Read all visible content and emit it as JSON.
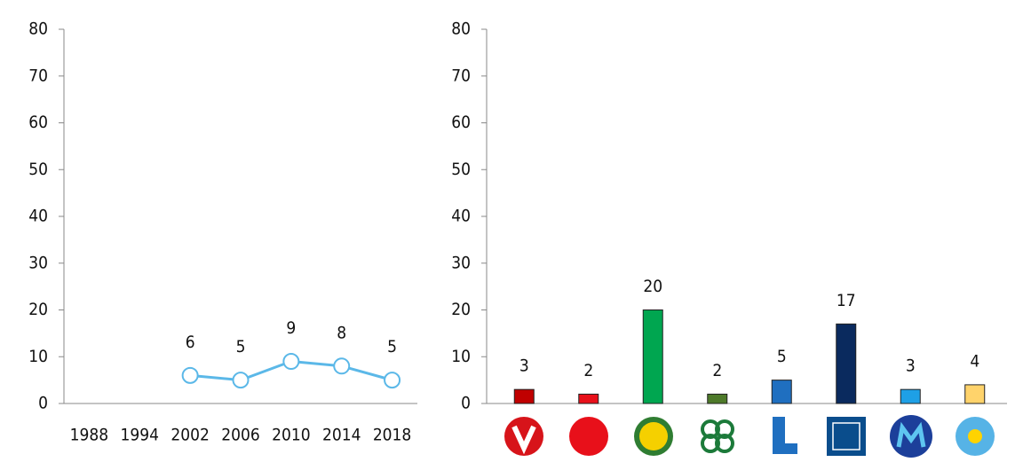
{
  "chart_data": [
    {
      "type": "line",
      "categories": [
        "1988",
        "1994",
        "2002",
        "2006",
        "2010",
        "2014",
        "2018"
      ],
      "values": [
        null,
        null,
        6,
        5,
        9,
        8,
        5
      ],
      "color": "#5bb8e8",
      "ylim": [
        0,
        80
      ],
      "yticks": [
        0,
        10,
        20,
        30,
        40,
        50,
        60,
        70,
        80
      ]
    },
    {
      "type": "bar",
      "categories": [
        null,
        null,
        null,
        null,
        null,
        null,
        null,
        null
      ],
      "values": [
        3,
        2,
        20,
        2,
        5,
        17,
        3,
        4
      ],
      "colors": [
        "#c00000",
        "#e8101a",
        "#00a650",
        "#4e7a2a",
        "#1f6fc0",
        "#0a2a5e",
        "#1ea0e6",
        "#ffd36b"
      ],
      "ylim": [
        0,
        80
      ],
      "yticks": [
        0,
        10,
        20,
        30,
        40,
        50,
        60,
        70,
        80
      ]
    }
  ]
}
